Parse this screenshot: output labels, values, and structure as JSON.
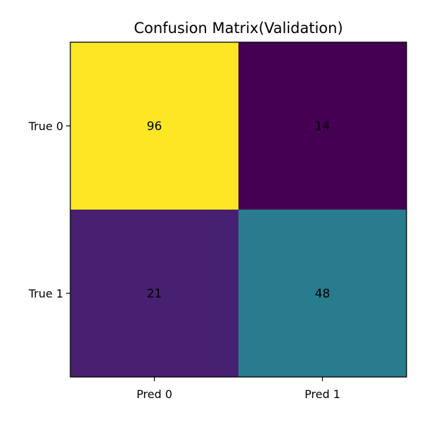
{
  "chart_data": {
    "type": "heatmap",
    "title": "Confusion Matrix(Validation)",
    "x_categories": [
      "Pred 0",
      "Pred 1"
    ],
    "y_categories": [
      "True 0",
      "True 1"
    ],
    "values": [
      [
        96,
        14
      ],
      [
        21,
        48
      ]
    ],
    "colormap": "viridis",
    "cell_colors": [
      [
        "#fde725",
        "#440154"
      ],
      [
        "#482071",
        "#297b8e"
      ]
    ],
    "grid": false,
    "legend": "none"
  }
}
